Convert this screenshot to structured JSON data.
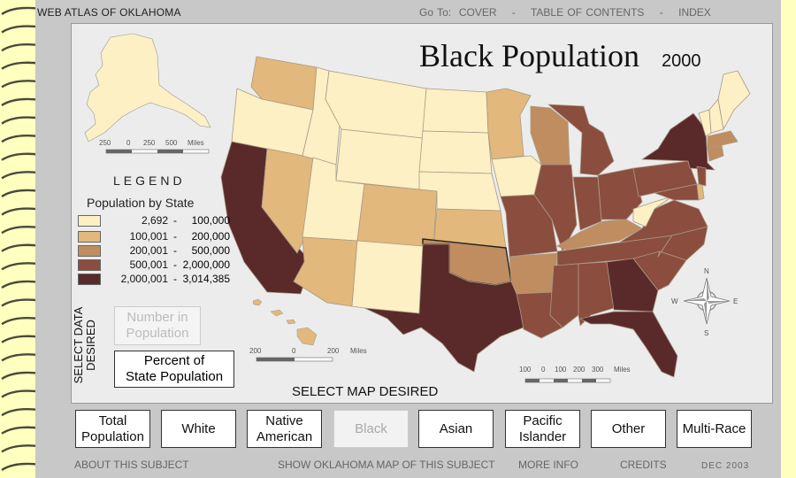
{
  "header": {
    "atlas_title": "WEB ATLAS OF OKLAHOMA",
    "goto_label": "Go To:",
    "cover": "COVER",
    "toc": "TABLE OF CONTENTS",
    "index": "INDEX",
    "sep": "-"
  },
  "map": {
    "title": "Black Population",
    "year": "2000",
    "alaska_scale": {
      "labels": [
        "250",
        "0",
        "250",
        "500",
        "Miles"
      ]
    },
    "hawaii_scale": {
      "labels": [
        "200",
        "0",
        "200",
        "Miles"
      ]
    },
    "conus_scale": {
      "labels": [
        "100",
        "0",
        "100",
        "200",
        "300",
        "Miles"
      ]
    },
    "compass": {
      "n": "N",
      "s": "S",
      "e": "E",
      "w": "W"
    },
    "classes": [
      "#fdf0c4",
      "#e2b87c",
      "#c08d60",
      "#8b4d3e",
      "#5a2a2a"
    ]
  },
  "legend": {
    "title": "LEGEND",
    "subtitle": "Population by State",
    "rows": [
      {
        "lo": "2,692",
        "hi": "100,000",
        "color": "#fdf0c4"
      },
      {
        "lo": "100,001",
        "hi": "200,000",
        "color": "#e2b87c"
      },
      {
        "lo": "200,001",
        "hi": "500,000",
        "color": "#c08d60"
      },
      {
        "lo": "500,001",
        "hi": "2,000,000",
        "color": "#8b4d3e"
      },
      {
        "lo": "2,000,001",
        "hi": "3,014,385",
        "color": "#5a2a2a"
      }
    ]
  },
  "data_select": {
    "label_line1": "SELECT DATA",
    "label_line2": "DESIRED",
    "number_line1": "Number in",
    "number_line2": "Population",
    "percent_line1": "Percent of",
    "percent_line2": "State Population"
  },
  "map_select": {
    "label": "SELECT MAP DESIRED",
    "buttons": [
      {
        "line1": "Total",
        "line2": "Population"
      },
      {
        "line1": "White",
        "line2": ""
      },
      {
        "line1": "Native",
        "line2": "American"
      },
      {
        "line1": "Black",
        "line2": ""
      },
      {
        "line1": "Asian",
        "line2": ""
      },
      {
        "line1": "Pacific",
        "line2": "Islander"
      },
      {
        "line1": "Other",
        "line2": ""
      },
      {
        "line1": "Multi-Race",
        "line2": ""
      }
    ]
  },
  "footer": {
    "about": "ABOUT THIS SUBJECT",
    "show_ok": "SHOW OKLAHOMA MAP OF THIS SUBJECT",
    "more": "MORE INFO",
    "credits": "CREDITS",
    "date": "DEC 2003"
  }
}
